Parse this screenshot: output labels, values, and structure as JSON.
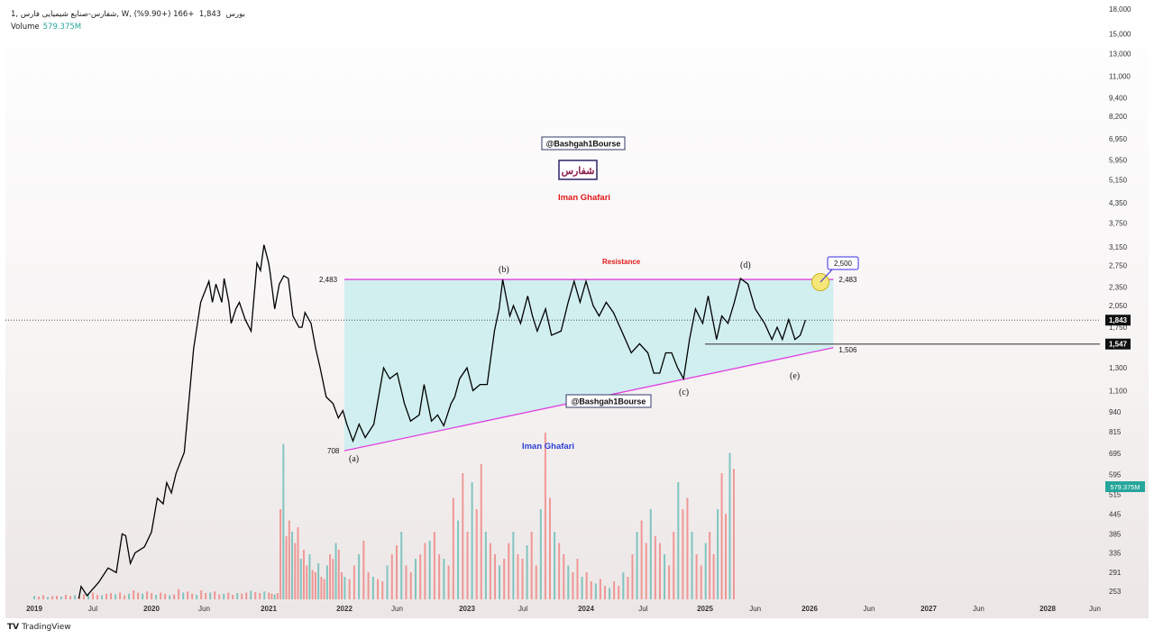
{
  "header": {
    "symbol_line": "1, شفارس-صنایع شیمیایی فارس, W, بورس",
    "last_price": "1,843",
    "change": "+166 (+9.90%)",
    "volume_label": "Volume",
    "volume_value": "579.375M"
  },
  "footer": {
    "brand_logo": "TV",
    "brand_name": "TradingView"
  },
  "colors": {
    "price_line": "#000000",
    "triangle_lines": "#e040e0",
    "triangle_fill": "#cdeef0",
    "volume_up": "#26a69a",
    "volume_down": "#ef5350",
    "label_red": "#e01818",
    "label_blue": "#2b3fd6",
    "callout_border": "#3a2ee0"
  },
  "annotations": {
    "watermark_top": "@Bashgah1Bourse",
    "watermark_mid": "@Bashgah1Bourse",
    "symbol_box": "شفارس",
    "author_red": "Iman Ghafari",
    "author_blue": "Iman Ghafari",
    "resistance": "Resistance",
    "wave_a": "(a)",
    "wave_b": "(b)",
    "wave_c": "(c)",
    "wave_d": "(d)",
    "wave_e": "(e)",
    "level_2483_left": "2,483",
    "level_2483_right": "2,483",
    "level_708": "708",
    "level_1506": "1,506",
    "target_callout": "2,500"
  },
  "chart_data": {
    "type": "line",
    "title": "شفارس-صنایع شیمیایی فارس, 1W, بورس",
    "scale": "log",
    "ylim": [
      253,
      18000
    ],
    "xlim_years": [
      2018.98,
      2028.5
    ],
    "y_ticks": [
      "18,000",
      "15,000",
      "13,000",
      "11,000",
      "9,400",
      "8,200",
      "6,950",
      "5,950",
      "5,150",
      "4,350",
      "3,750",
      "3,150",
      "2,750",
      "2,350",
      "2,050",
      "1,750",
      "1,300",
      "1,100",
      "940",
      "815",
      "695",
      "595",
      "515",
      "445",
      "385",
      "335",
      "291",
      "253"
    ],
    "x_ticks": [
      {
        "label": "2019",
        "t": 2019.0
      },
      {
        "label": "Jul",
        "t": 2019.5
      },
      {
        "label": "2020",
        "t": 2020.0
      },
      {
        "label": "Jun",
        "t": 2020.45
      },
      {
        "label": "2021",
        "t": 2021.0
      },
      {
        "label": "2022",
        "t": 2022.0
      },
      {
        "label": "Jun",
        "t": 2022.43
      },
      {
        "label": "2023",
        "t": 2023.0
      },
      {
        "label": "Jul",
        "t": 2023.47
      },
      {
        "label": "2024",
        "t": 2024.0
      },
      {
        "label": "Jul",
        "t": 2024.48
      },
      {
        "label": "2025",
        "t": 2025.0
      },
      {
        "label": "Jun",
        "t": 2025.48
      },
      {
        "label": "2026",
        "t": 2026.0
      },
      {
        "label": "Jun",
        "t": 2026.5
      },
      {
        "label": "2027",
        "t": 2027.0
      },
      {
        "label": "Jun",
        "t": 2027.42
      },
      {
        "label": "2028",
        "t": 2028.0
      },
      {
        "label": "Jun",
        "t": 2028.41
      }
    ],
    "price_badges": [
      {
        "label": "1,843",
        "value": 1843,
        "style": "last"
      },
      {
        "label": "1,547",
        "value": 1547,
        "style": "level"
      }
    ],
    "volume_badge": "579.375M",
    "price_series": [
      [
        2019.0,
        200
      ],
      [
        2019.38,
        240
      ],
      [
        2019.4,
        262
      ],
      [
        2019.45,
        245
      ],
      [
        2019.55,
        270
      ],
      [
        2019.63,
        300
      ],
      [
        2019.7,
        290
      ],
      [
        2019.75,
        385
      ],
      [
        2019.78,
        380
      ],
      [
        2019.82,
        310
      ],
      [
        2019.86,
        335
      ],
      [
        2019.94,
        350
      ],
      [
        2020.0,
        390
      ],
      [
        2020.05,
        500
      ],
      [
        2020.1,
        480
      ],
      [
        2020.13,
        560
      ],
      [
        2020.17,
        520
      ],
      [
        2020.21,
        600
      ],
      [
        2020.28,
        700
      ],
      [
        2020.36,
        1500
      ],
      [
        2020.42,
        2100
      ],
      [
        2020.49,
        2450
      ],
      [
        2020.52,
        2100
      ],
      [
        2020.55,
        2400
      ],
      [
        2020.6,
        2100
      ],
      [
        2020.62,
        2500
      ],
      [
        2020.66,
        2100
      ],
      [
        2020.68,
        1800
      ],
      [
        2020.72,
        2000
      ],
      [
        2020.75,
        2100
      ],
      [
        2020.8,
        1850
      ],
      [
        2020.85,
        1700
      ],
      [
        2020.9,
        2800
      ],
      [
        2020.93,
        2650
      ],
      [
        2020.96,
        3200
      ],
      [
        2021.0,
        2800
      ],
      [
        2021.02,
        2600
      ],
      [
        2021.08,
        2000
      ],
      [
        2021.14,
        2400
      ],
      [
        2021.2,
        2550
      ],
      [
        2021.26,
        2500
      ],
      [
        2021.32,
        1900
      ],
      [
        2021.4,
        1750
      ],
      [
        2021.44,
        1750
      ],
      [
        2021.48,
        1950
      ],
      [
        2021.56,
        1800
      ],
      [
        2021.62,
        1500
      ],
      [
        2021.68,
        1300
      ],
      [
        2021.76,
        1050
      ],
      [
        2021.85,
        1000
      ],
      [
        2021.92,
        900
      ],
      [
        2021.98,
        950
      ],
      [
        2022.02,
        860
      ],
      [
        2022.07,
        760
      ],
      [
        2022.12,
        860
      ],
      [
        2022.17,
        780
      ],
      [
        2022.24,
        860
      ],
      [
        2022.32,
        1300
      ],
      [
        2022.37,
        1200
      ],
      [
        2022.43,
        1250
      ],
      [
        2022.49,
        1000
      ],
      [
        2022.54,
        880
      ],
      [
        2022.61,
        920
      ],
      [
        2022.65,
        1150
      ],
      [
        2022.71,
        880
      ],
      [
        2022.76,
        920
      ],
      [
        2022.81,
        850
      ],
      [
        2022.87,
        1000
      ],
      [
        2022.9,
        1050
      ],
      [
        2022.94,
        1200
      ],
      [
        2023.0,
        1300
      ],
      [
        2023.05,
        1100
      ],
      [
        2023.11,
        1150
      ],
      [
        2023.17,
        1150
      ],
      [
        2023.23,
        1700
      ],
      [
        2023.27,
        2000
      ],
      [
        2023.3,
        2480
      ],
      [
        2023.36,
        1900
      ],
      [
        2023.39,
        2050
      ],
      [
        2023.45,
        1800
      ],
      [
        2023.51,
        2200
      ],
      [
        2023.55,
        1900
      ],
      [
        2023.59,
        1700
      ],
      [
        2023.66,
        2000
      ],
      [
        2023.71,
        1650
      ],
      [
        2023.79,
        1700
      ],
      [
        2023.85,
        2100
      ],
      [
        2023.9,
        2450
      ],
      [
        2023.95,
        2100
      ],
      [
        2024.0,
        2450
      ],
      [
        2024.06,
        2050
      ],
      [
        2024.11,
        1900
      ],
      [
        2024.17,
        2100
      ],
      [
        2024.23,
        1950
      ],
      [
        2024.3,
        1700
      ],
      [
        2024.38,
        1450
      ],
      [
        2024.45,
        1550
      ],
      [
        2024.52,
        1450
      ],
      [
        2024.57,
        1250
      ],
      [
        2024.62,
        1250
      ],
      [
        2024.67,
        1450
      ],
      [
        2024.72,
        1450
      ],
      [
        2024.77,
        1300
      ],
      [
        2024.82,
        1200
      ],
      [
        2024.87,
        1600
      ],
      [
        2024.92,
        2000
      ],
      [
        2024.98,
        1800
      ],
      [
        2025.03,
        2200
      ],
      [
        2025.11,
        1600
      ],
      [
        2025.16,
        1900
      ],
      [
        2025.22,
        1800
      ],
      [
        2025.28,
        2100
      ],
      [
        2025.34,
        2500
      ],
      [
        2025.41,
        2400
      ],
      [
        2025.48,
        2000
      ],
      [
        2025.57,
        1800
      ],
      [
        2025.64,
        1600
      ],
      [
        2025.69,
        1750
      ],
      [
        2025.74,
        1600
      ],
      [
        2025.8,
        1850
      ],
      [
        2025.86,
        1600
      ],
      [
        2025.91,
        1650
      ],
      [
        2025.96,
        1843
      ]
    ],
    "volume_unit": "M",
    "volume_ylim": [
      0,
      800
    ],
    "volume_start": 2019.0,
    "volume_step": 0.0385,
    "volume_M": [
      15,
      12,
      18,
      10,
      14,
      16,
      12,
      20,
      15,
      18,
      12,
      22,
      25,
      30,
      20,
      18,
      25,
      28,
      22,
      30,
      18,
      25,
      40,
      30,
      25,
      35,
      28,
      20,
      30,
      25,
      18,
      22,
      45,
      30,
      35,
      25,
      20,
      40,
      28,
      30,
      35,
      22,
      25,
      30,
      20,
      28,
      25,
      30,
      38,
      32,
      28,
      35,
      30,
      25,
      22,
      28,
      400,
      690,
      280,
      350,
      300,
      250,
      320,
      180,
      220,
      150,
      200,
      130,
      120,
      160,
      100,
      90,
      150,
      200,
      180,
      250,
      220,
      120,
      100,
      90,
      150,
      200,
      260,
      120,
      100,
      90,
      80,
      150,
      200,
      240,
      300,
      150,
      120,
      180,
      200,
      250,
      260,
      300,
      200,
      180,
      150,
      450,
      350,
      560,
      300,
      520,
      400,
      600,
      300,
      250,
      200,
      150,
      180,
      250,
      300,
      200,
      180,
      240,
      300,
      150,
      400,
      740,
      450,
      300,
      250,
      200,
      150,
      120,
      180,
      100,
      120,
      80,
      70,
      90,
      60,
      50,
      80,
      60,
      120,
      100,
      200,
      300,
      350,
      250,
      400,
      280,
      250,
      200,
      150,
      300,
      520,
      400,
      450,
      300,
      200,
      150,
      250,
      300,
      200,
      400,
      560,
      380,
      650,
      579
    ],
    "overlays": {
      "resistance_level": 2483,
      "support_line": [
        [
          2022.0,
          708
        ],
        [
          2026.2,
          1506
        ]
      ],
      "triangle_end": 2026.2,
      "level_1547_start": 2025.0,
      "target": 2500
    }
  }
}
